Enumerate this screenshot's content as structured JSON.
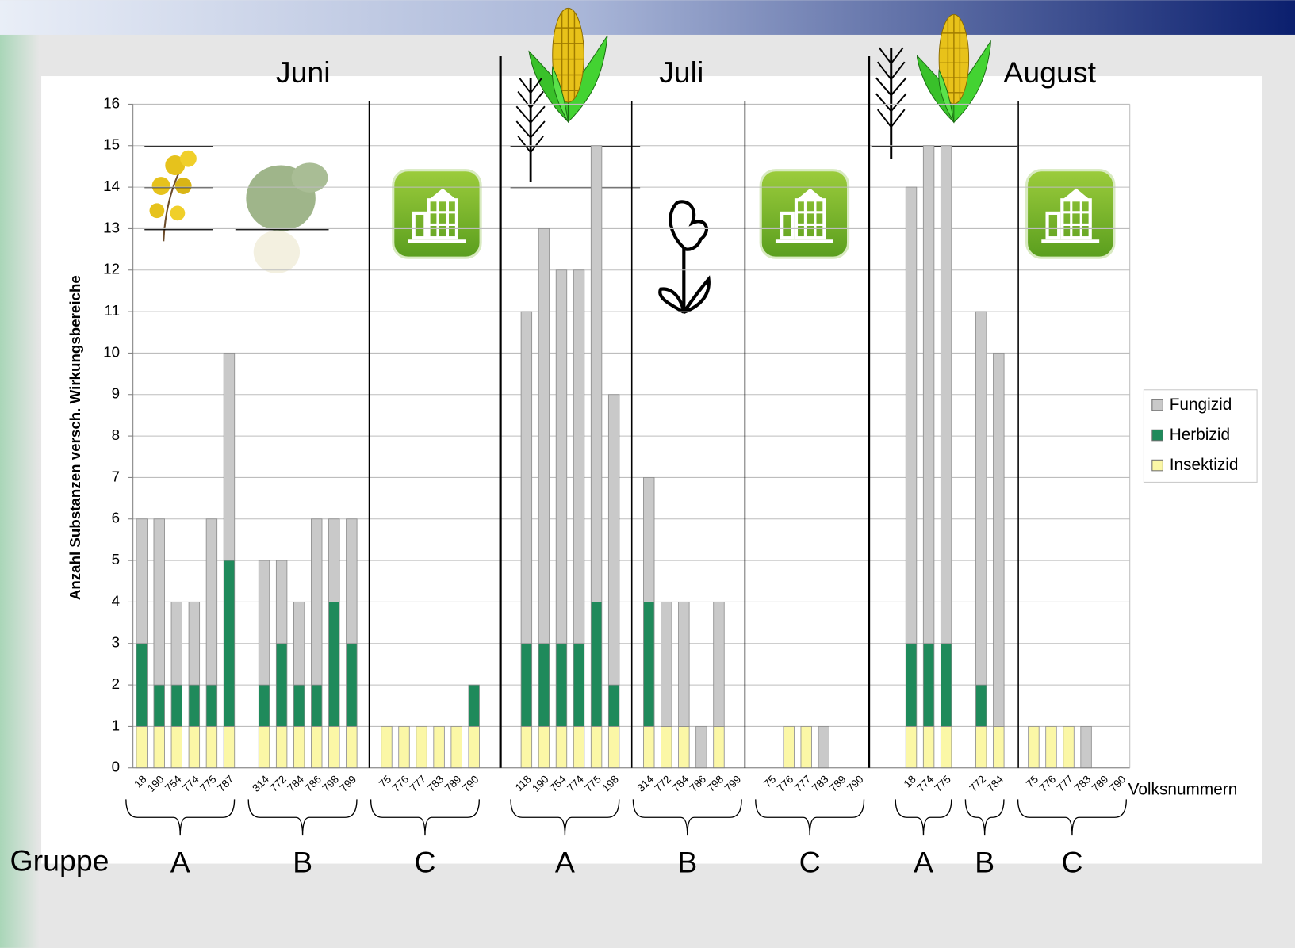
{
  "chart_data": {
    "type": "bar",
    "stacked": true,
    "ylabel": "Anzahl Substanzen versch. Wirkungsbereiche",
    "xlabel": "Volksnummern",
    "group_axis_label": "Gruppe",
    "months": [
      "Juni",
      "Juli",
      "August"
    ],
    "groups": [
      "A",
      "B",
      "C",
      "A",
      "B",
      "C",
      "A",
      "B",
      "C"
    ],
    "categories": [
      "18",
      "190",
      "754",
      "774",
      "775",
      "787",
      null,
      "314",
      "772",
      "784",
      "786",
      "798",
      "799",
      null,
      "75",
      "776",
      "777",
      "783",
      "789",
      "790",
      null,
      null,
      "118",
      "190",
      "754",
      "774",
      "775",
      "198",
      null,
      "314",
      "772",
      "784",
      "786",
      "798",
      "799",
      null,
      "75",
      "776",
      "777",
      "783",
      "789",
      "790",
      null,
      null,
      "18",
      "774",
      "775",
      null,
      "772",
      "784",
      null,
      "75",
      "776",
      "777",
      "783",
      "789",
      "790"
    ],
    "series": [
      {
        "name": "Insektizid",
        "color": "#fbf7a6",
        "values": [
          1,
          1,
          1,
          1,
          1,
          1,
          null,
          1,
          1,
          1,
          1,
          1,
          1,
          null,
          1,
          1,
          1,
          1,
          1,
          1,
          null,
          null,
          1,
          1,
          1,
          1,
          1,
          1,
          null,
          1,
          1,
          1,
          0,
          1,
          0,
          null,
          0,
          1,
          1,
          0,
          0,
          0,
          null,
          null,
          1,
          1,
          1,
          null,
          1,
          1,
          null,
          1,
          1,
          1,
          0,
          0,
          0
        ]
      },
      {
        "name": "Herbizid",
        "color": "#1f8a5b",
        "values": [
          2,
          1,
          1,
          1,
          1,
          4,
          null,
          1,
          2,
          1,
          1,
          3,
          2,
          null,
          0,
          0,
          0,
          0,
          0,
          1,
          null,
          null,
          2,
          2,
          2,
          2,
          3,
          1,
          null,
          3,
          0,
          0,
          0,
          0,
          0,
          null,
          0,
          0,
          0,
          0,
          0,
          0,
          null,
          null,
          2,
          2,
          2,
          null,
          1,
          0,
          null,
          0,
          0,
          0,
          0,
          0,
          0
        ]
      },
      {
        "name": "Fungizid",
        "color": "#c9c9c9",
        "values": [
          3,
          4,
          2,
          2,
          4,
          5,
          null,
          3,
          2,
          2,
          4,
          2,
          3,
          null,
          0,
          0,
          0,
          0,
          0,
          0,
          null,
          null,
          8,
          10,
          9,
          9,
          11,
          7,
          null,
          3,
          3,
          3,
          1,
          3,
          0,
          null,
          0,
          0,
          0,
          1,
          0,
          0,
          null,
          null,
          11,
          12,
          12,
          null,
          9,
          9,
          null,
          0,
          0,
          0,
          1,
          0,
          0
        ]
      }
    ],
    "ylim": [
      0,
      16
    ],
    "yticks": [
      0,
      1,
      2,
      3,
      4,
      5,
      6,
      7,
      8,
      9,
      10,
      11,
      12,
      13,
      14,
      15,
      16
    ],
    "grid": true,
    "legend": "right"
  }
}
